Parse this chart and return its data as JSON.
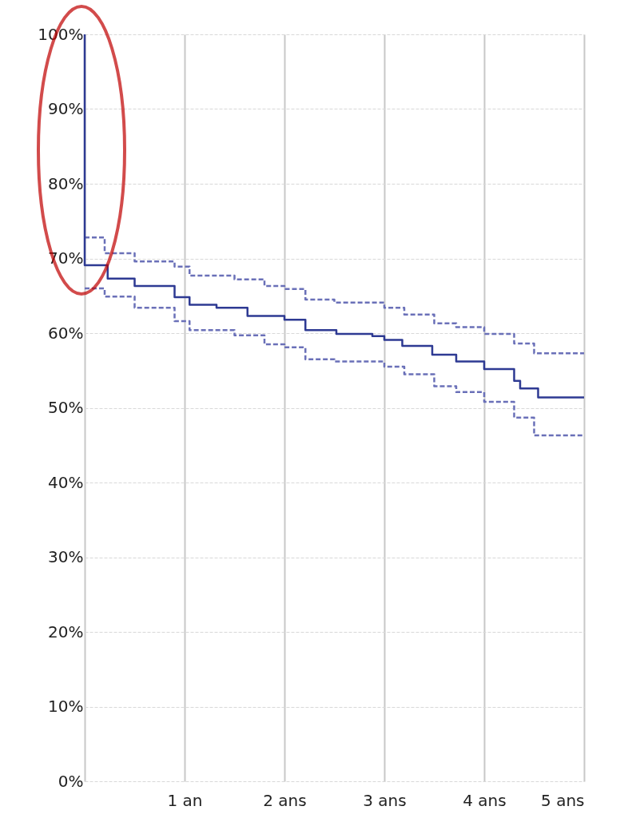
{
  "chart_data": {
    "type": "step",
    "xlim": [
      0,
      5
    ],
    "ylim": [
      0,
      100
    ],
    "xticks": [
      {
        "value": 0,
        "label": null
      },
      {
        "value": 1,
        "label": "1 an"
      },
      {
        "value": 2,
        "label": "2 ans"
      },
      {
        "value": 3,
        "label": "3 ans"
      },
      {
        "value": 4,
        "label": "4 ans"
      },
      {
        "value": 5,
        "label": "5 ans"
      }
    ],
    "yticks": [
      {
        "value": 0,
        "label": "0%"
      },
      {
        "value": 10,
        "label": "10%"
      },
      {
        "value": 20,
        "label": "20%"
      },
      {
        "value": 30,
        "label": "30%"
      },
      {
        "value": 40,
        "label": "40%"
      },
      {
        "value": 50,
        "label": "50%"
      },
      {
        "value": 60,
        "label": "60%"
      },
      {
        "value": 70,
        "label": "70%"
      },
      {
        "value": 80,
        "label": "80%"
      },
      {
        "value": 90,
        "label": "90%"
      },
      {
        "value": 100,
        "label": "100%"
      }
    ],
    "grid": true,
    "series": [
      {
        "color": "#6a70b8",
        "line_style": "dashed",
        "x": [
          0,
          0.2,
          0.5,
          0.9,
          1.05,
          1.5,
          1.8,
          2.0,
          2.21,
          2.5,
          3.0,
          3.2,
          3.5,
          3.72,
          4.0,
          4.3,
          4.5,
          5.0
        ],
        "values": [
          72.8,
          70.7,
          69.6,
          68.9,
          67.7,
          67.2,
          66.3,
          65.9,
          64.5,
          64.1,
          63.4,
          62.5,
          61.3,
          60.8,
          59.9,
          58.6,
          57.3,
          57.3
        ]
      },
      {
        "color": "#2e3a93",
        "line_style": "solid",
        "x": [
          0,
          0,
          0.23,
          0.5,
          0.9,
          1.05,
          1.32,
          1.63,
          2.0,
          2.21,
          2.52,
          2.88,
          3.0,
          3.18,
          3.48,
          3.72,
          4.0,
          4.3,
          4.36,
          4.54,
          5.0
        ],
        "values": [
          100,
          69.1,
          67.3,
          66.3,
          64.8,
          63.8,
          63.4,
          62.3,
          61.8,
          60.4,
          59.9,
          59.6,
          59.1,
          58.3,
          57.1,
          56.2,
          55.2,
          53.6,
          52.6,
          51.4,
          51.4
        ]
      },
      {
        "color": "#6a70b8",
        "line_style": "dashed",
        "x": [
          0,
          0.2,
          0.5,
          0.9,
          1.05,
          1.5,
          1.8,
          2.0,
          2.21,
          2.5,
          3.0,
          3.2,
          3.5,
          3.72,
          4.0,
          4.3,
          4.5,
          5.0
        ],
        "values": [
          66.0,
          64.9,
          63.4,
          61.6,
          60.4,
          59.7,
          58.5,
          58.1,
          56.5,
          56.2,
          55.5,
          54.5,
          52.9,
          52.1,
          50.8,
          48.7,
          46.3,
          46.3
        ]
      }
    ]
  }
}
